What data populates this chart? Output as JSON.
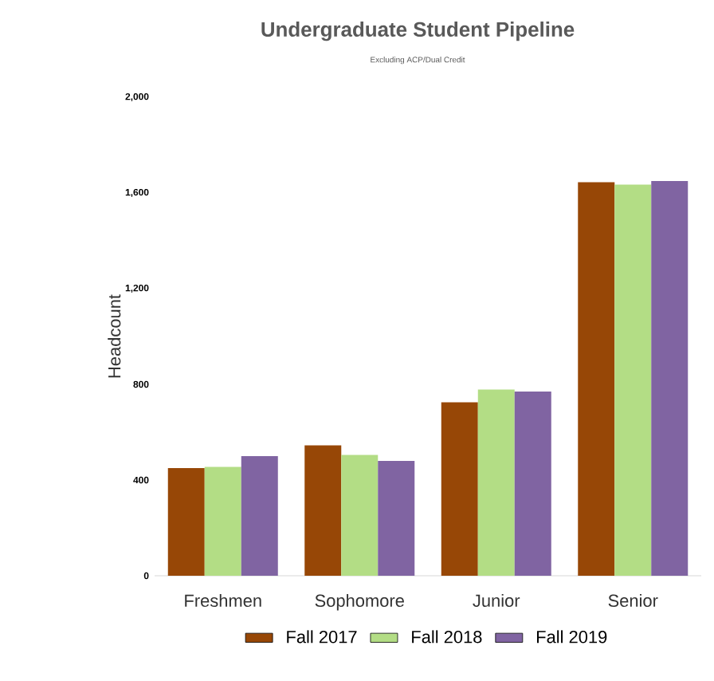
{
  "chart_data": {
    "type": "bar",
    "title": "Undergraduate Student Pipeline",
    "subtitle": "Excluding ACP/Dual Credit",
    "ylabel": "Headcount",
    "categories": [
      "Freshmen",
      "Sophomore",
      "Junior",
      "Senior"
    ],
    "series": [
      {
        "name": "Fall 2017",
        "color": "#974706",
        "values": [
          450,
          545,
          725,
          1645
        ]
      },
      {
        "name": "Fall 2018",
        "color": "#b3dd85",
        "values": [
          455,
          505,
          778,
          1635
        ]
      },
      {
        "name": "Fall 2019",
        "color": "#8064a2",
        "values": [
          500,
          480,
          770,
          1650
        ]
      }
    ],
    "ylim": [
      0,
      2000
    ],
    "yticks": [
      0,
      400,
      800,
      {
        "value": 1200,
        "label": "1,200"
      },
      {
        "value": 1600,
        "label": "1,600"
      },
      {
        "value": 2000,
        "label": "2,000"
      }
    ],
    "grid": false,
    "legend": "bottom"
  }
}
